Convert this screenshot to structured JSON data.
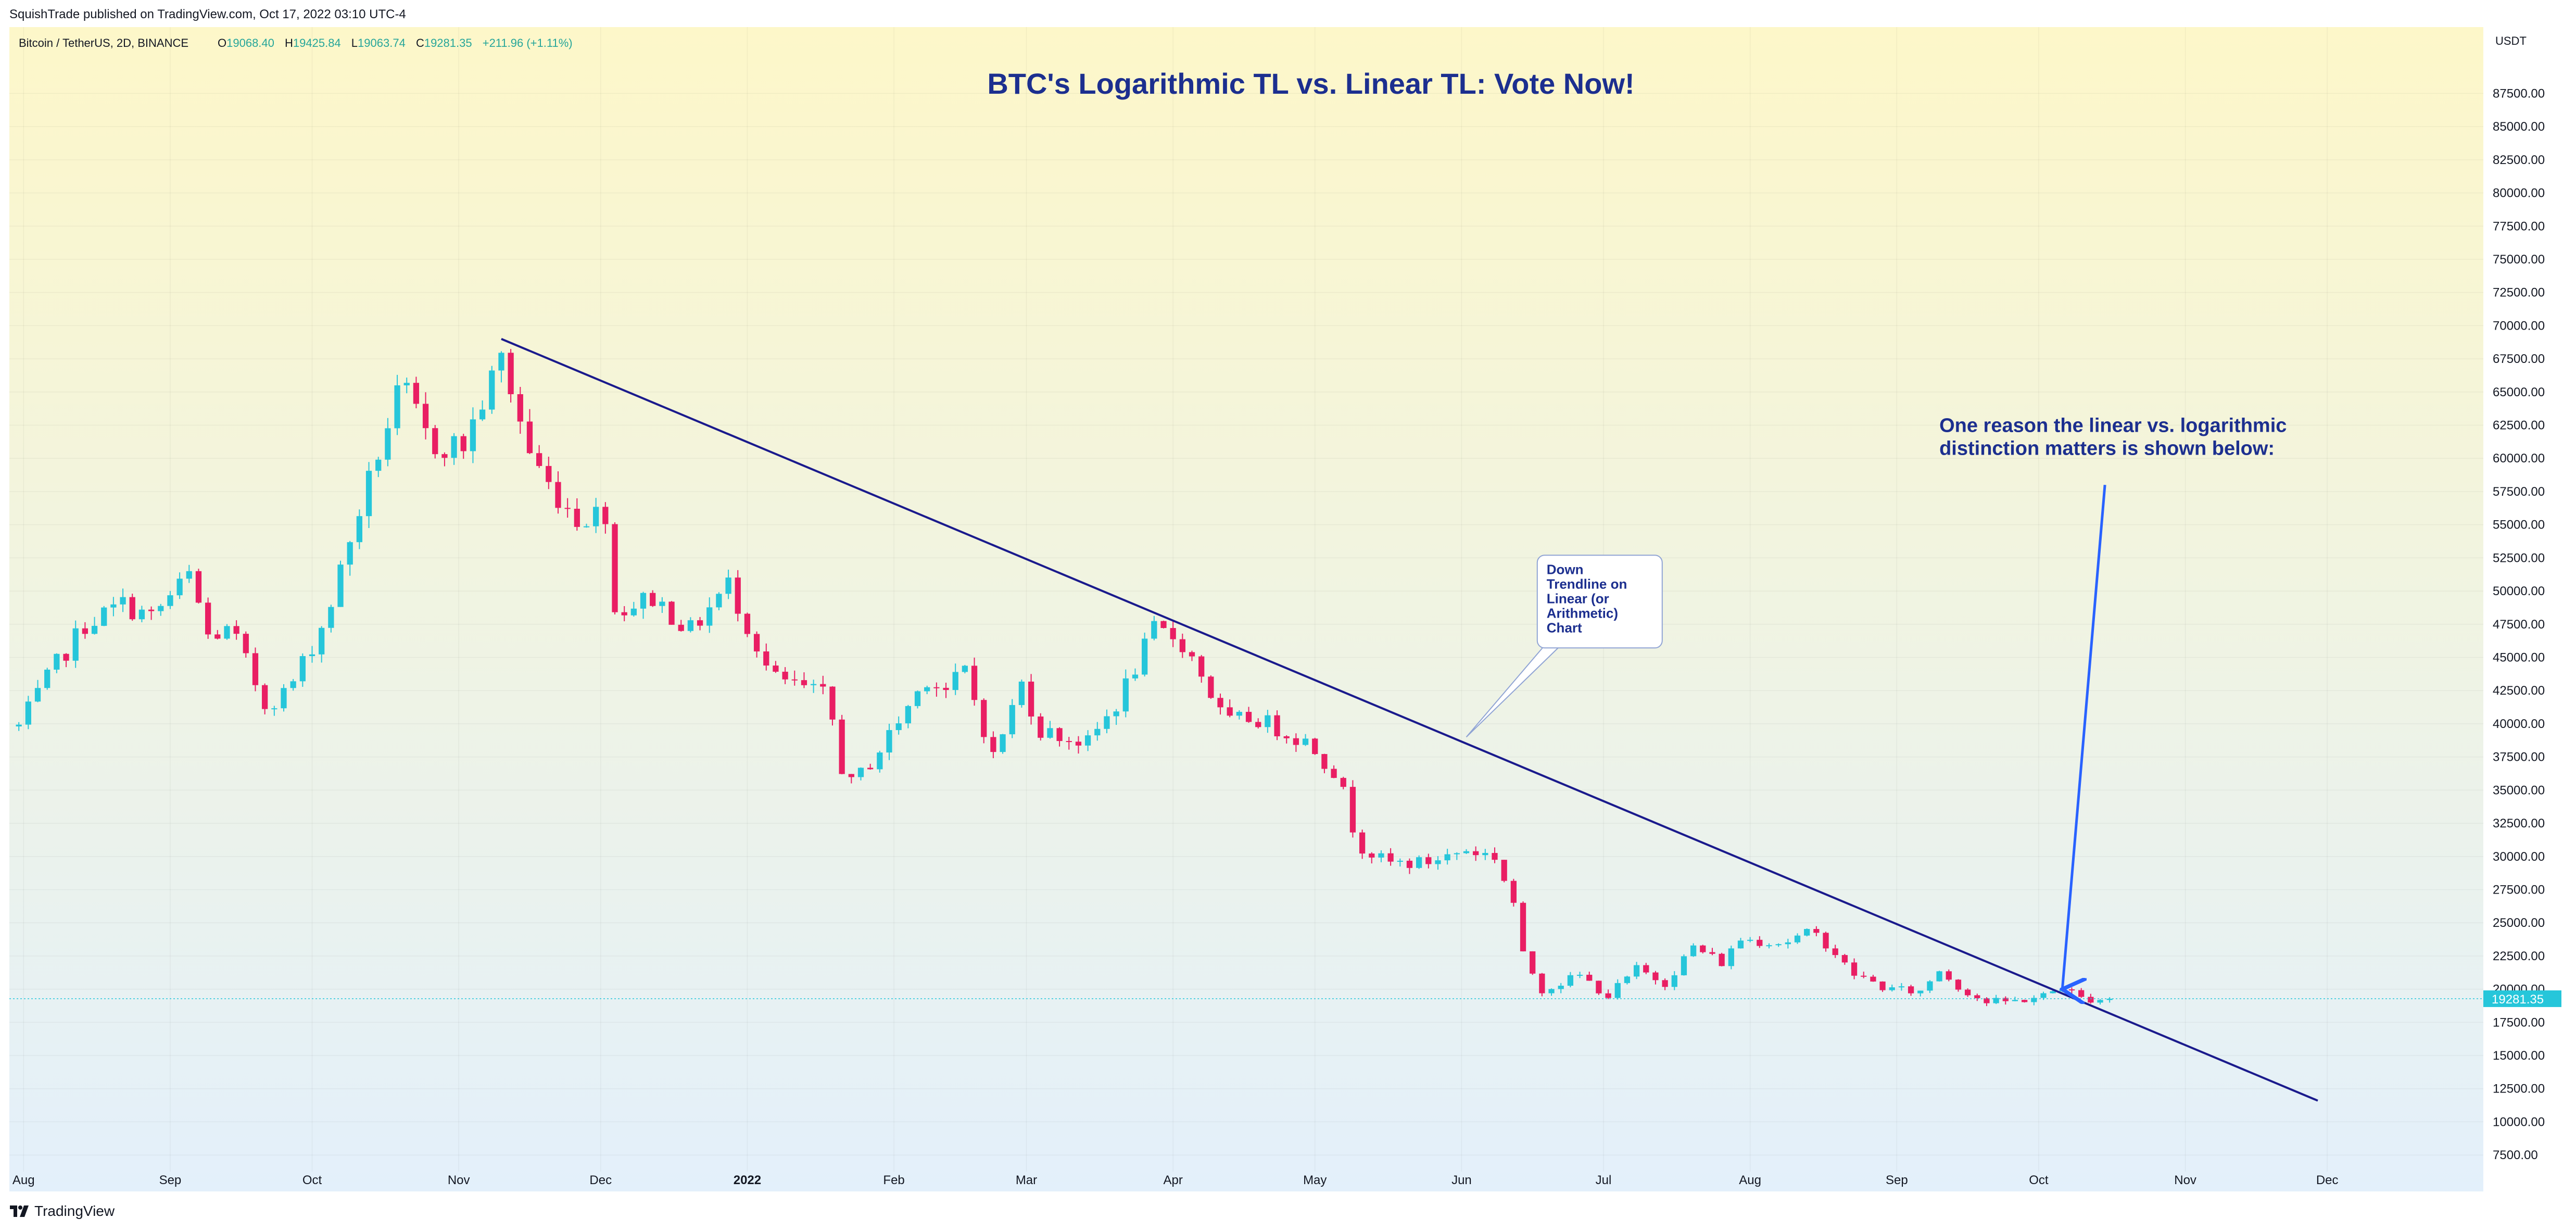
{
  "header": {
    "publisher": "SquishTrade published on TradingView.com, Oct 17, 2022 03:10 UTC-4"
  },
  "legend": {
    "symbol": "Bitcoin / TetherUS, 2D, BINANCE",
    "o_label": "O",
    "o_value": "19068.40",
    "h_label": "H",
    "h_value": "19425.84",
    "l_label": "L",
    "l_value": "19063.74",
    "c_label": "C",
    "c_value": "19281.35",
    "change": "+211.96 (+1.11%)"
  },
  "footer": {
    "brand": "TradingView"
  },
  "colors": {
    "up": "#26c6da",
    "down": "#e91e63",
    "trendline": "#1a1a8c",
    "annotation": "#1c2f8f",
    "arrow": "#2962ff",
    "bg_top": "#fdf7c9",
    "bg_bottom": "#e3f0fb"
  },
  "chart_data": {
    "type": "candlestick",
    "title": "BTC's Logarithmic TL vs. Linear TL: Vote Now!",
    "ylabel": "USDT",
    "y_scale": "linear",
    "ylim": [
      6250,
      92500
    ],
    "yticks": [
      "87500.00",
      "85000.00",
      "82500.00",
      "80000.00",
      "77500.00",
      "75000.00",
      "72500.00",
      "70000.00",
      "67500.00",
      "65000.00",
      "62500.00",
      "60000.00",
      "57500.00",
      "55000.00",
      "52500.00",
      "50000.00",
      "47500.00",
      "45000.00",
      "42500.00",
      "40000.00",
      "37500.00",
      "35000.00",
      "32500.00",
      "30000.00",
      "27500.00",
      "25000.00",
      "22500.00",
      "20000.00",
      "17500.00",
      "15000.00",
      "12500.00",
      "10000.00",
      "7500.00"
    ],
    "xticks": [
      {
        "label": "Aug",
        "date": "2021-08-01"
      },
      {
        "label": "Sep",
        "date": "2021-09-01"
      },
      {
        "label": "Oct",
        "date": "2021-10-01"
      },
      {
        "label": "Nov",
        "date": "2021-11-01"
      },
      {
        "label": "Dec",
        "date": "2021-12-01"
      },
      {
        "label": "2022",
        "date": "2022-01-01"
      },
      {
        "label": "Feb",
        "date": "2022-02-01"
      },
      {
        "label": "Mar",
        "date": "2022-03-01"
      },
      {
        "label": "Apr",
        "date": "2022-04-01"
      },
      {
        "label": "May",
        "date": "2022-05-01"
      },
      {
        "label": "Jun",
        "date": "2022-06-01"
      },
      {
        "label": "Jul",
        "date": "2022-07-01"
      },
      {
        "label": "Aug",
        "date": "2022-08-01"
      },
      {
        "label": "Sep",
        "date": "2022-09-01"
      },
      {
        "label": "Oct",
        "date": "2022-10-01"
      },
      {
        "label": "Nov",
        "date": "2022-11-01"
      },
      {
        "label": "Dec",
        "date": "2022-12-01"
      }
    ],
    "xlim": [
      "2021-07-29",
      "2023-01-03"
    ],
    "grid": true,
    "last_price": 19281.35,
    "last_price_label": "19281.35",
    "anchors": [
      [
        "2021-07-31",
        39800
      ],
      [
        "2021-08-08",
        44500
      ],
      [
        "2021-08-14",
        47500
      ],
      [
        "2021-08-22",
        49000
      ],
      [
        "2021-08-28",
        48000
      ],
      [
        "2021-09-06",
        51500
      ],
      [
        "2021-09-08",
        46500
      ],
      [
        "2021-09-14",
        47000
      ],
      [
        "2021-09-21",
        41500
      ],
      [
        "2021-09-26",
        42500
      ],
      [
        "2021-10-04",
        48000
      ],
      [
        "2021-10-10",
        55000
      ],
      [
        "2021-10-16",
        61500
      ],
      [
        "2021-10-20",
        65500
      ],
      [
        "2021-10-26",
        61000
      ],
      [
        "2021-11-02",
        61000
      ],
      [
        "2021-11-10",
        67500
      ],
      [
        "2021-11-16",
        60500
      ],
      [
        "2021-11-20",
        58000
      ],
      [
        "2021-11-26",
        55500
      ],
      [
        "2021-12-02",
        56000
      ],
      [
        "2021-12-04",
        48500
      ],
      [
        "2021-12-12",
        49500
      ],
      [
        "2021-12-20",
        47000
      ],
      [
        "2021-12-28",
        50500
      ],
      [
        "2022-01-01",
        47500
      ],
      [
        "2022-01-06",
        43500
      ],
      [
        "2022-01-14",
        42500
      ],
      [
        "2022-01-18",
        42000
      ],
      [
        "2022-01-22",
        35000
      ],
      [
        "2022-01-28",
        37500
      ],
      [
        "2022-02-08",
        43500
      ],
      [
        "2022-02-12",
        42500
      ],
      [
        "2022-02-16",
        44000
      ],
      [
        "2022-02-22",
        37500
      ],
      [
        "2022-02-28",
        43000
      ],
      [
        "2022-03-04",
        39500
      ],
      [
        "2022-03-14",
        38500
      ],
      [
        "2022-03-20",
        41500
      ],
      [
        "2022-03-28",
        47000
      ],
      [
        "2022-04-02",
        46500
      ],
      [
        "2022-04-06",
        44500
      ],
      [
        "2022-04-12",
        40000
      ],
      [
        "2022-04-18",
        40500
      ],
      [
        "2022-04-24",
        39500
      ],
      [
        "2022-04-30",
        38500
      ],
      [
        "2022-05-06",
        36000
      ],
      [
        "2022-05-10",
        31000
      ],
      [
        "2022-05-16",
        29500
      ],
      [
        "2022-05-24",
        29500
      ],
      [
        "2022-06-02",
        30500
      ],
      [
        "2022-06-08",
        30000
      ],
      [
        "2022-06-12",
        26500
      ],
      [
        "2022-06-14",
        22500
      ],
      [
        "2022-06-18",
        20000
      ],
      [
        "2022-06-26",
        21000
      ],
      [
        "2022-07-02",
        19500
      ],
      [
        "2022-07-08",
        21500
      ],
      [
        "2022-07-14",
        20500
      ],
      [
        "2022-07-20",
        23200
      ],
      [
        "2022-07-26",
        22000
      ],
      [
        "2022-07-30",
        23800
      ],
      [
        "2022-08-08",
        23500
      ],
      [
        "2022-08-14",
        24300
      ],
      [
        "2022-08-18",
        23200
      ],
      [
        "2022-08-22",
        21300
      ],
      [
        "2022-08-30",
        20000
      ],
      [
        "2022-09-06",
        19800
      ],
      [
        "2022-09-10",
        21500
      ],
      [
        "2022-09-14",
        20200
      ],
      [
        "2022-09-20",
        19000
      ],
      [
        "2022-09-26",
        19100
      ],
      [
        "2022-10-02",
        19500
      ],
      [
        "2022-10-06",
        20200
      ],
      [
        "2022-10-10",
        19300
      ],
      [
        "2022-10-16",
        19281
      ]
    ],
    "lines": [
      {
        "kind": "linear_trendline",
        "from": {
          "date": "2021-11-10",
          "value": 69000
        },
        "to": {
          "date": "2022-11-29",
          "value": 11600
        }
      }
    ],
    "annotations": [
      {
        "kind": "callout",
        "text": [
          "Down",
          "Trendline on",
          "Linear (or",
          "Arithmetic)",
          "Chart"
        ],
        "pointer": {
          "date": "2022-06-02",
          "value": 39000
        },
        "box_top_left": {
          "date": "2022-06-17",
          "value": 52700
        }
      },
      {
        "kind": "text",
        "text": [
          "One reason the linear vs. logarithmic",
          "distinction matters is shown below:"
        ],
        "at": {
          "date": "2022-09-10",
          "value": 62000
        }
      },
      {
        "kind": "arrow",
        "from": {
          "date": "2022-10-15",
          "value": 58000
        },
        "to": {
          "date": "2022-10-06",
          "value": 20000
        }
      }
    ]
  }
}
